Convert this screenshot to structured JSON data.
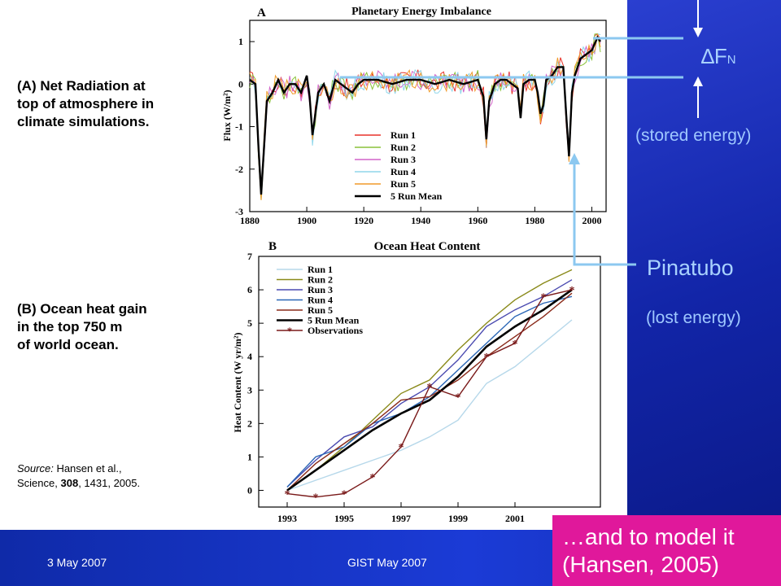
{
  "left_panel": {
    "caption_a": [
      "(A) Net Radiation at",
      "top of atmosphere in",
      "climate simulations."
    ],
    "caption_b": [
      "(B) Ocean heat gain",
      "in the top 750 m",
      "of world ocean."
    ],
    "source": {
      "prefix": "Source:",
      "text1": "Hansen et al.,",
      "text2a": "Science,",
      "volume": "308",
      "text2b": ", 1431, 2005."
    }
  },
  "right_panel": {
    "delta_fn": "∆F",
    "delta_sub": "N",
    "stored": "(stored energy)",
    "pinatubo": "Pinatubo",
    "lost": "(lost energy)",
    "conclusion": [
      "…and to model it",
      "(Hansen, 2005)"
    ],
    "colors": {
      "arrow": "#8cc8f0",
      "accent": "#e0189b",
      "background": "#1a2fc0"
    }
  },
  "footer": {
    "date": "3 May 2007",
    "event": "GIST May 2007"
  },
  "chart_data": [
    {
      "type": "line",
      "panel": "A",
      "title": "Planetary Energy Imbalance",
      "ylabel": "Flux (W/m²)",
      "xlabel": "",
      "xlim": [
        1880,
        2005
      ],
      "ylim": [
        -3,
        1.5
      ],
      "xticks": [
        "1880",
        "1900",
        "1920",
        "1940",
        "1960",
        "1980",
        "2000"
      ],
      "yticks": [
        "-3",
        "-2",
        "-1",
        "0",
        "1"
      ],
      "legend": "lower-right",
      "series": [
        {
          "name": "Run 1",
          "color": "#e8322a"
        },
        {
          "name": "Run 2",
          "color": "#8ac23a"
        },
        {
          "name": "Run 3",
          "color": "#d263c8"
        },
        {
          "name": "Run 4",
          "color": "#8fd6ea"
        },
        {
          "name": "Run 5",
          "color": "#f09a2a"
        },
        {
          "name": "5 Run Mean",
          "color": "#000000"
        }
      ],
      "mean": {
        "x": [
          1880,
          1882,
          1883,
          1884,
          1886,
          1888,
          1890,
          1892,
          1894,
          1896,
          1898,
          1900,
          1901,
          1902,
          1904,
          1906,
          1908,
          1910,
          1912,
          1914,
          1916,
          1918,
          1920,
          1925,
          1930,
          1935,
          1940,
          1945,
          1950,
          1955,
          1960,
          1962,
          1963,
          1964,
          1966,
          1968,
          1970,
          1974,
          1975,
          1976,
          1978,
          1980,
          1981,
          1982,
          1983,
          1984,
          1986,
          1988,
          1990,
          1991,
          1992,
          1993,
          1994,
          1996,
          1998,
          2000,
          2002,
          2003
        ],
        "y": [
          0.1,
          0.0,
          -1.4,
          -2.6,
          -0.4,
          -0.2,
          0.1,
          -0.2,
          0.0,
          0.0,
          -0.2,
          0.2,
          -0.3,
          -1.2,
          -0.2,
          0.0,
          -0.4,
          0.1,
          0.0,
          -0.1,
          -0.2,
          0.0,
          0.1,
          0.1,
          0.0,
          0.1,
          0.1,
          0.0,
          0.1,
          0.0,
          0.1,
          -0.3,
          -1.3,
          -0.4,
          0.0,
          0.1,
          0.1,
          -0.1,
          -0.8,
          0.0,
          0.1,
          0.1,
          -0.2,
          -0.7,
          -0.5,
          0.1,
          0.2,
          0.4,
          0.4,
          -0.7,
          -1.7,
          -0.2,
          0.2,
          0.6,
          0.7,
          0.8,
          1.1,
          1.0
        ]
      }
    },
    {
      "type": "line",
      "panel": "B",
      "title": "Ocean Heat Content",
      "ylabel": "Heat Content (W yr/m²)",
      "xlabel": "",
      "xlim": [
        1992,
        2004
      ],
      "ylim": [
        -0.5,
        7
      ],
      "xticks": [
        "1993",
        "1995",
        "1997",
        "1999",
        "2001"
      ],
      "yticks": [
        "0",
        "1",
        "2",
        "3",
        "4",
        "5",
        "6",
        "7"
      ],
      "legend": "upper-left",
      "x": [
        1993,
        1994,
        1995,
        1996,
        1997,
        1998,
        1999,
        2000,
        2001,
        2002,
        2003
      ],
      "series": [
        {
          "name": "Run 1",
          "color": "#b6d8ea",
          "values": [
            0.0,
            0.3,
            0.6,
            0.9,
            1.2,
            1.6,
            2.1,
            3.2,
            3.7,
            4.4,
            5.1
          ]
        },
        {
          "name": "Run 2",
          "color": "#8a8a1a",
          "values": [
            0.0,
            0.6,
            1.3,
            2.1,
            2.9,
            3.3,
            4.2,
            5.0,
            5.7,
            6.2,
            6.6
          ]
        },
        {
          "name": "Run 3",
          "color": "#4a4ab0",
          "values": [
            0.1,
            0.9,
            1.6,
            1.9,
            2.6,
            3.1,
            3.9,
            4.9,
            5.4,
            5.8,
            6.3
          ]
        },
        {
          "name": "Run 4",
          "color": "#2a66b6",
          "values": [
            0.1,
            1.0,
            1.3,
            2.0,
            2.3,
            2.8,
            3.6,
            4.4,
            5.2,
            5.6,
            5.8
          ]
        },
        {
          "name": "Run 5",
          "color": "#8a2a1a",
          "values": [
            0.0,
            0.8,
            1.4,
            2.0,
            2.7,
            2.8,
            3.3,
            4.0,
            4.6,
            5.2,
            5.9
          ]
        },
        {
          "name": "5 Run Mean",
          "color": "#000000",
          "values": [
            0.0,
            0.6,
            1.2,
            1.8,
            2.3,
            2.7,
            3.4,
            4.3,
            4.9,
            5.4,
            6.0
          ]
        },
        {
          "name": "Observations",
          "color": "#7a1a1a",
          "values": [
            -0.1,
            -0.2,
            -0.1,
            0.4,
            1.3,
            3.1,
            2.8,
            4.0,
            4.4,
            5.8,
            6.0
          ]
        }
      ]
    }
  ]
}
